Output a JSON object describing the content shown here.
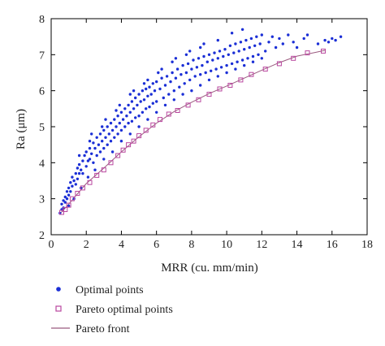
{
  "colors": {
    "optimal": "#1b2fd6",
    "pareto_marker": "#b9479f",
    "pareto_front": "#9b5a7f",
    "axis": "#000000"
  },
  "chart_data": {
    "type": "scatter",
    "xlabel": "MRR (cu. mm/min)",
    "ylabel": "Ra (μm)",
    "xlim": [
      0,
      18
    ],
    "ylim": [
      2,
      8
    ],
    "xticks": [
      "0",
      "2",
      "4",
      "6",
      "8",
      "10",
      "12",
      "14",
      "16",
      "18"
    ],
    "yticks": [
      "2",
      "3",
      "4",
      "5",
      "6",
      "7",
      "8"
    ],
    "grid": false,
    "legend_position": "below-left",
    "series": [
      {
        "name": "Optimal points",
        "marker": "dot",
        "points": [
          [
            0.5,
            2.6
          ],
          [
            0.6,
            2.7
          ],
          [
            0.6,
            2.85
          ],
          [
            0.7,
            2.75
          ],
          [
            0.7,
            2.95
          ],
          [
            0.8,
            2.9
          ],
          [
            0.8,
            3.05
          ],
          [
            0.9,
            3.0
          ],
          [
            0.9,
            3.2
          ],
          [
            1.0,
            3.1
          ],
          [
            1.0,
            3.3
          ],
          [
            1.1,
            3.2
          ],
          [
            1.1,
            3.45
          ],
          [
            1.2,
            3.35
          ],
          [
            1.2,
            3.6
          ],
          [
            1.3,
            3.5
          ],
          [
            1.4,
            3.7
          ],
          [
            1.4,
            3.4
          ],
          [
            1.5,
            3.85
          ],
          [
            1.5,
            3.55
          ],
          [
            1.6,
            3.7
          ],
          [
            1.6,
            3.95
          ],
          [
            1.7,
            3.8
          ],
          [
            1.8,
            4.05
          ],
          [
            1.8,
            3.7
          ],
          [
            1.9,
            4.2
          ],
          [
            2.0,
            3.9
          ],
          [
            2.0,
            4.3
          ],
          [
            2.1,
            4.05
          ],
          [
            2.2,
            4.4
          ],
          [
            2.2,
            4.1
          ],
          [
            2.3,
            4.25
          ],
          [
            2.4,
            4.55
          ],
          [
            2.4,
            4.0
          ],
          [
            2.5,
            4.4
          ],
          [
            2.6,
            4.7
          ],
          [
            2.6,
            4.2
          ],
          [
            2.7,
            4.5
          ],
          [
            2.8,
            4.8
          ],
          [
            2.8,
            4.3
          ],
          [
            2.9,
            4.6
          ],
          [
            3.0,
            4.9
          ],
          [
            3.0,
            4.4
          ],
          [
            3.1,
            4.7
          ],
          [
            3.2,
            5.0
          ],
          [
            3.2,
            4.5
          ],
          [
            3.3,
            4.8
          ],
          [
            3.4,
            5.1
          ],
          [
            3.4,
            4.6
          ],
          [
            3.5,
            4.9
          ],
          [
            3.6,
            5.2
          ],
          [
            3.6,
            4.7
          ],
          [
            3.7,
            5.0
          ],
          [
            3.8,
            5.3
          ],
          [
            3.8,
            4.8
          ],
          [
            3.9,
            5.1
          ],
          [
            4.0,
            5.4
          ],
          [
            4.0,
            4.9
          ],
          [
            4.1,
            5.2
          ],
          [
            4.2,
            5.5
          ],
          [
            4.2,
            5.0
          ],
          [
            4.3,
            5.3
          ],
          [
            4.4,
            5.6
          ],
          [
            4.4,
            5.1
          ],
          [
            4.5,
            5.4
          ],
          [
            4.6,
            5.7
          ],
          [
            4.6,
            5.15
          ],
          [
            4.7,
            5.5
          ],
          [
            4.8,
            5.8
          ],
          [
            4.8,
            5.25
          ],
          [
            4.9,
            5.6
          ],
          [
            5.0,
            5.9
          ],
          [
            5.0,
            5.3
          ],
          [
            5.1,
            5.7
          ],
          [
            5.2,
            6.0
          ],
          [
            5.2,
            5.4
          ],
          [
            5.3,
            5.75
          ],
          [
            5.4,
            6.05
          ],
          [
            5.4,
            5.5
          ],
          [
            5.5,
            5.85
          ],
          [
            5.6,
            6.1
          ],
          [
            5.6,
            5.55
          ],
          [
            5.7,
            5.9
          ],
          [
            5.8,
            6.2
          ],
          [
            5.8,
            5.65
          ],
          [
            5.9,
            6.0
          ],
          [
            6.0,
            6.25
          ],
          [
            6.0,
            5.7
          ],
          [
            6.2,
            6.05
          ],
          [
            6.3,
            6.35
          ],
          [
            6.4,
            5.8
          ],
          [
            6.5,
            6.15
          ],
          [
            6.6,
            6.4
          ],
          [
            6.7,
            5.9
          ],
          [
            6.8,
            6.25
          ],
          [
            6.9,
            6.5
          ],
          [
            7.0,
            6.0
          ],
          [
            7.1,
            6.35
          ],
          [
            7.2,
            6.6
          ],
          [
            7.3,
            6.1
          ],
          [
            7.4,
            6.45
          ],
          [
            7.5,
            6.7
          ],
          [
            7.6,
            6.2
          ],
          [
            7.7,
            6.5
          ],
          [
            7.8,
            6.75
          ],
          [
            7.9,
            6.3
          ],
          [
            8.0,
            6.6
          ],
          [
            8.1,
            6.85
          ],
          [
            8.2,
            6.4
          ],
          [
            8.3,
            6.65
          ],
          [
            8.4,
            6.9
          ],
          [
            8.5,
            6.45
          ],
          [
            8.6,
            6.7
          ],
          [
            8.7,
            6.95
          ],
          [
            8.8,
            6.5
          ],
          [
            8.9,
            6.8
          ],
          [
            9.0,
            7.0
          ],
          [
            9.1,
            6.55
          ],
          [
            9.2,
            6.85
          ],
          [
            9.3,
            7.05
          ],
          [
            9.4,
            6.6
          ],
          [
            9.5,
            6.9
          ],
          [
            9.6,
            7.1
          ],
          [
            9.7,
            6.65
          ],
          [
            9.8,
            6.95
          ],
          [
            9.9,
            7.15
          ],
          [
            10.0,
            6.7
          ],
          [
            10.1,
            7.0
          ],
          [
            10.2,
            7.25
          ],
          [
            10.3,
            6.75
          ],
          [
            10.4,
            7.05
          ],
          [
            10.5,
            7.3
          ],
          [
            10.6,
            6.8
          ],
          [
            10.7,
            7.1
          ],
          [
            10.8,
            7.35
          ],
          [
            10.9,
            6.85
          ],
          [
            11.0,
            7.15
          ],
          [
            11.1,
            7.4
          ],
          [
            11.2,
            6.9
          ],
          [
            11.3,
            7.2
          ],
          [
            11.4,
            7.45
          ],
          [
            11.5,
            6.95
          ],
          [
            11.6,
            7.25
          ],
          [
            11.7,
            7.5
          ],
          [
            11.8,
            7.0
          ],
          [
            11.9,
            7.3
          ],
          [
            12.0,
            7.55
          ],
          [
            12.2,
            7.1
          ],
          [
            12.4,
            7.35
          ],
          [
            12.6,
            7.5
          ],
          [
            12.8,
            7.2
          ],
          [
            13.0,
            7.45
          ],
          [
            13.2,
            7.3
          ],
          [
            13.5,
            7.55
          ],
          [
            13.8,
            7.35
          ],
          [
            14.0,
            7.2
          ],
          [
            14.4,
            7.45
          ],
          [
            14.6,
            7.55
          ],
          [
            15.2,
            7.3
          ],
          [
            15.6,
            7.4
          ],
          [
            15.8,
            7.35
          ],
          [
            16.0,
            7.45
          ],
          [
            16.5,
            7.5
          ],
          [
            16.2,
            7.4
          ],
          [
            1.0,
            2.8
          ],
          [
            1.3,
            3.0
          ],
          [
            1.7,
            3.3
          ],
          [
            2.1,
            3.6
          ],
          [
            2.5,
            3.8
          ],
          [
            3.0,
            4.1
          ],
          [
            3.5,
            4.3
          ],
          [
            4.0,
            4.6
          ],
          [
            4.5,
            4.8
          ],
          [
            5.0,
            5.0
          ],
          [
            5.5,
            5.2
          ],
          [
            6.0,
            5.4
          ],
          [
            6.5,
            5.6
          ],
          [
            7.0,
            5.75
          ],
          [
            7.5,
            5.9
          ],
          [
            8.0,
            6.0
          ],
          [
            8.5,
            6.15
          ],
          [
            9.0,
            6.3
          ],
          [
            9.5,
            6.4
          ],
          [
            10.0,
            6.5
          ],
          [
            10.5,
            6.6
          ],
          [
            11.0,
            6.7
          ],
          [
            11.5,
            6.8
          ],
          [
            12.0,
            6.9
          ],
          [
            2.3,
            4.8
          ],
          [
            3.1,
            5.2
          ],
          [
            3.9,
            5.6
          ],
          [
            4.7,
            6.0
          ],
          [
            5.5,
            6.3
          ],
          [
            6.3,
            6.6
          ],
          [
            7.1,
            6.9
          ],
          [
            7.9,
            7.1
          ],
          [
            8.7,
            7.3
          ],
          [
            9.5,
            7.4
          ],
          [
            10.3,
            7.6
          ],
          [
            10.9,
            7.7
          ],
          [
            1.6,
            4.2
          ],
          [
            2.2,
            4.6
          ],
          [
            2.9,
            5.0
          ],
          [
            3.7,
            5.45
          ],
          [
            4.5,
            5.9
          ],
          [
            5.3,
            6.2
          ],
          [
            6.1,
            6.5
          ],
          [
            6.9,
            6.8
          ],
          [
            7.7,
            7.0
          ],
          [
            8.5,
            7.2
          ]
        ]
      },
      {
        "name": "Pareto optimal points",
        "marker": "square",
        "points": [
          [
            0.6,
            2.62
          ],
          [
            0.8,
            2.7
          ],
          [
            1.0,
            2.82
          ],
          [
            1.2,
            3.0
          ],
          [
            1.5,
            3.15
          ],
          [
            1.8,
            3.3
          ],
          [
            2.2,
            3.45
          ],
          [
            2.6,
            3.65
          ],
          [
            3.0,
            3.8
          ],
          [
            3.4,
            4.0
          ],
          [
            3.8,
            4.2
          ],
          [
            4.1,
            4.35
          ],
          [
            4.4,
            4.5
          ],
          [
            4.7,
            4.6
          ],
          [
            5.0,
            4.75
          ],
          [
            5.4,
            4.9
          ],
          [
            5.8,
            5.05
          ],
          [
            6.2,
            5.2
          ],
          [
            6.7,
            5.35
          ],
          [
            7.2,
            5.45
          ],
          [
            7.8,
            5.6
          ],
          [
            8.4,
            5.75
          ],
          [
            9.0,
            5.9
          ],
          [
            9.6,
            6.05
          ],
          [
            10.2,
            6.15
          ],
          [
            10.8,
            6.3
          ],
          [
            11.4,
            6.45
          ],
          [
            12.2,
            6.6
          ],
          [
            13.0,
            6.75
          ],
          [
            13.8,
            6.9
          ],
          [
            14.6,
            7.05
          ],
          [
            15.5,
            7.1
          ]
        ]
      },
      {
        "name": "Pareto front",
        "marker": "line",
        "points": [
          [
            0.5,
            2.58
          ],
          [
            1.0,
            2.85
          ],
          [
            2.0,
            3.42
          ],
          [
            3.0,
            3.85
          ],
          [
            4.0,
            4.3
          ],
          [
            5.0,
            4.72
          ],
          [
            6.0,
            5.1
          ],
          [
            7.0,
            5.42
          ],
          [
            8.0,
            5.68
          ],
          [
            9.0,
            5.92
          ],
          [
            10.0,
            6.13
          ],
          [
            11.0,
            6.35
          ],
          [
            12.0,
            6.57
          ],
          [
            13.0,
            6.78
          ],
          [
            14.0,
            6.96
          ],
          [
            15.0,
            7.06
          ],
          [
            15.6,
            7.12
          ]
        ]
      }
    ]
  }
}
